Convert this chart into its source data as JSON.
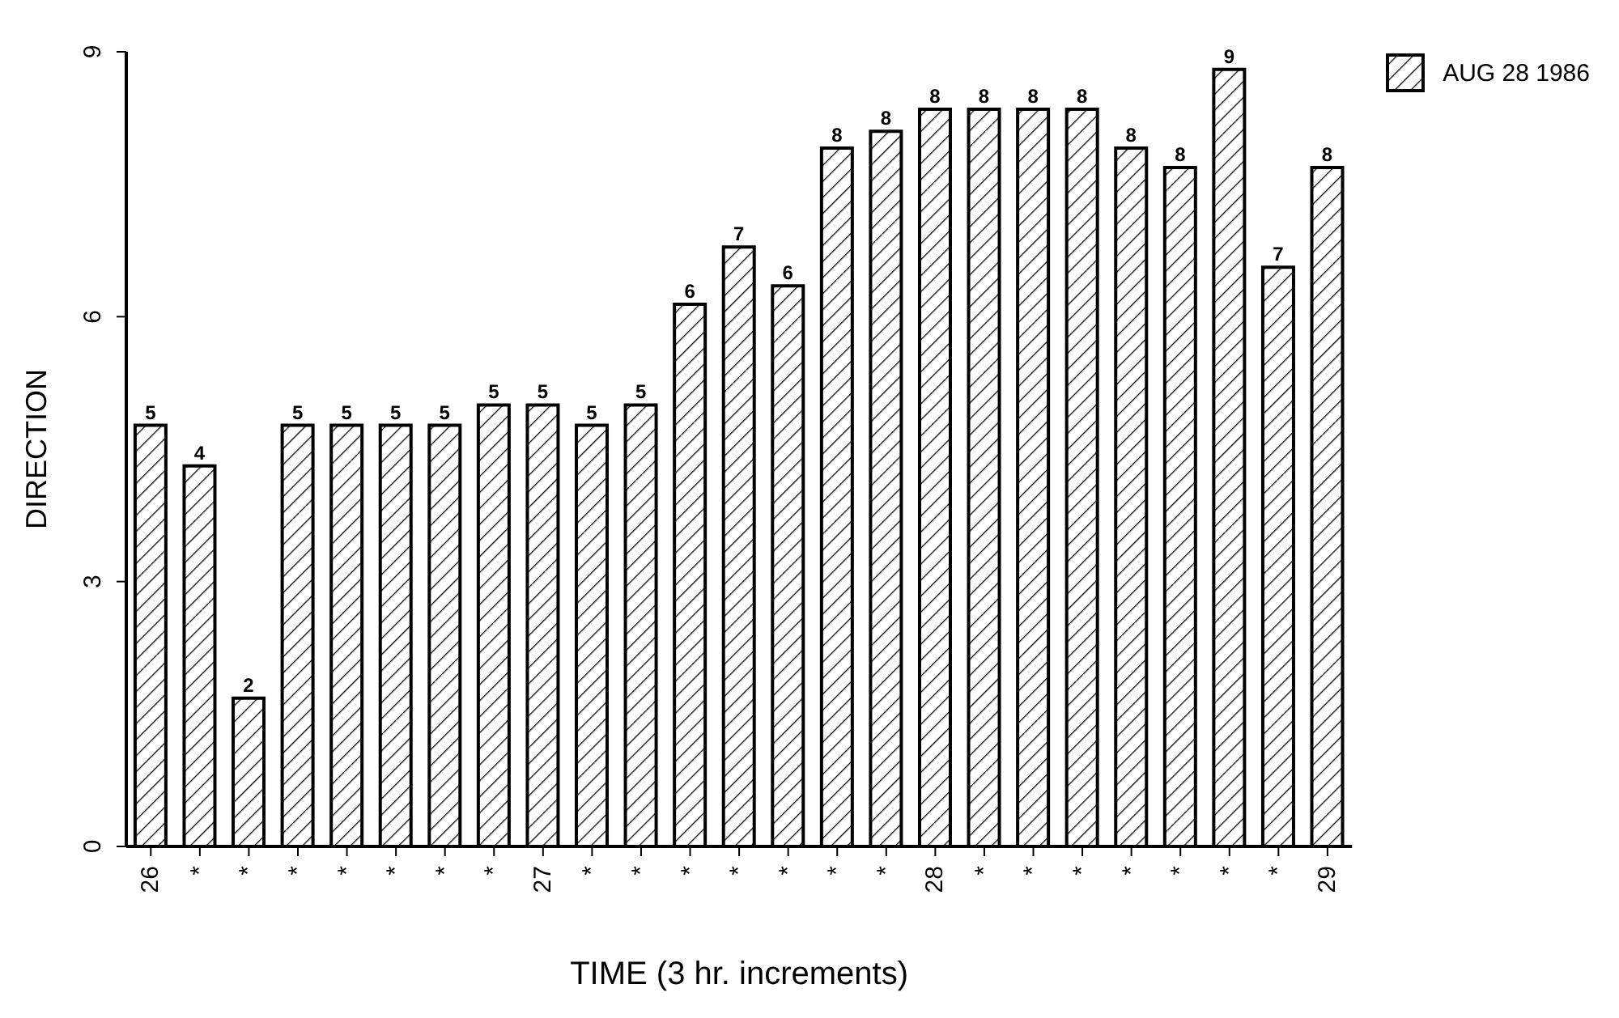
{
  "chart_data": {
    "type": "bar",
    "xlabel": "TIME (3 hr. increments)",
    "ylabel": "DIRECTION",
    "categories": [
      "26",
      "*",
      "*",
      "*",
      "*",
      "*",
      "*",
      "*",
      "27",
      "*",
      "*",
      "*",
      "*",
      "*",
      "*",
      "*",
      "28",
      "*",
      "*",
      "*",
      "*",
      "*",
      "*",
      "*",
      "29"
    ],
    "series": [
      {
        "name": "AUG 28 1986",
        "color": "#000000",
        "values": [
          4.77,
          4.31,
          1.68,
          4.77,
          4.77,
          4.77,
          4.77,
          5.0,
          5.0,
          4.77,
          5.0,
          6.14,
          6.79,
          6.35,
          7.91,
          8.1,
          8.35,
          8.35,
          8.35,
          8.35,
          7.91,
          7.69,
          8.8,
          6.56,
          7.69
        ],
        "value_labels": [
          "5",
          "4",
          "2",
          "5",
          "5",
          "5",
          "5",
          "5",
          "5",
          "5",
          "5",
          "6",
          "7",
          "6",
          "8",
          "8",
          "8",
          "8",
          "8",
          "8",
          "8",
          "8",
          "9",
          "7",
          "8"
        ]
      }
    ],
    "ylim": [
      0,
      9
    ],
    "yticks": [
      0,
      3,
      6,
      9
    ],
    "legend": "top right"
  }
}
